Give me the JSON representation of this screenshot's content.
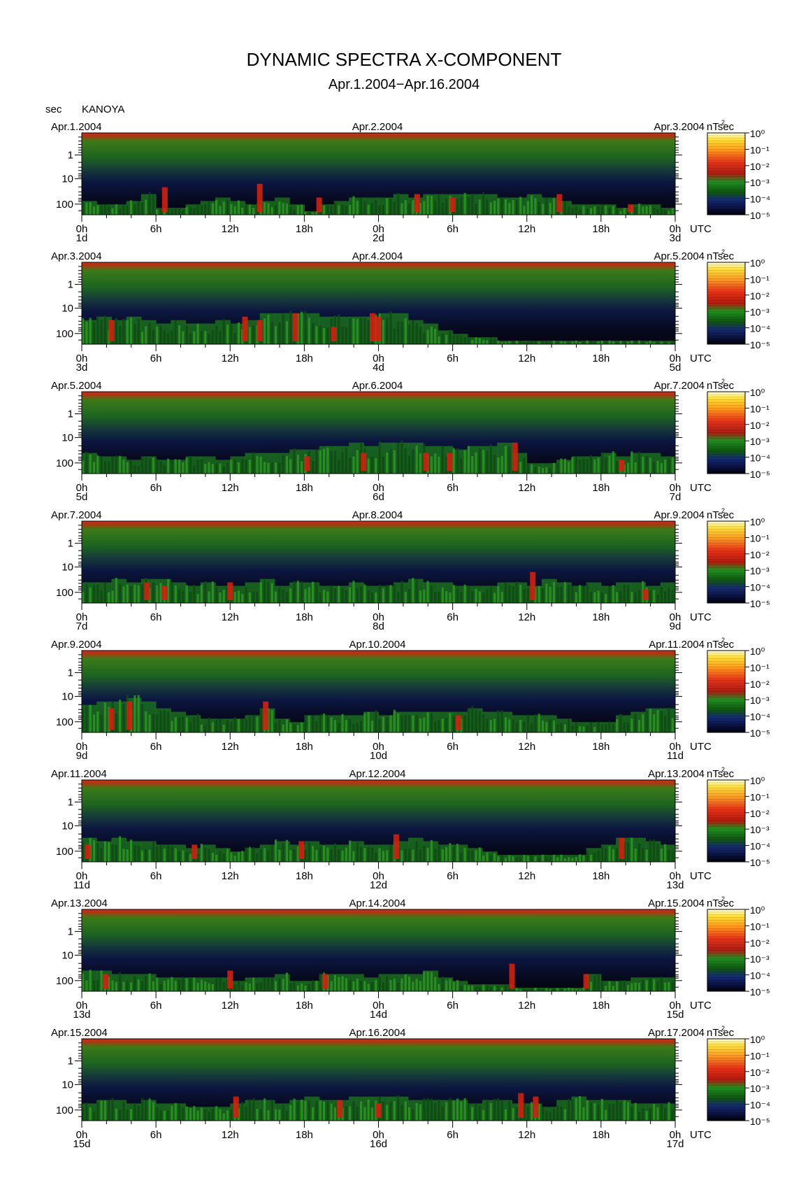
{
  "title": "DYNAMIC SPECTRA X-COMPONENT",
  "subtitle": "Apr.1.2004−Apr.16.2004",
  "station": "KANOYA",
  "y_unit": "sec",
  "colorbar_unit": "nT²sec",
  "time_unit": "UTC",
  "colors": {
    "background": "#050510",
    "noise_floor": "#0f1e50",
    "green": "#1e7a1e",
    "red": "#d02010",
    "top_band": "#b82a10"
  },
  "chart_data": [
    {
      "type": "heatmap",
      "date_left": "Apr.1.2004",
      "date_mid": "Apr.2.2004",
      "date_right": "Apr.3.2004",
      "x_ticks": [
        "0h",
        "6h",
        "12h",
        "18h",
        "0h",
        "6h",
        "12h",
        "18h",
        "0h"
      ],
      "day_labels": [
        "1d",
        "2d",
        "3d"
      ],
      "y_ticks": [
        "1",
        "10",
        "100"
      ],
      "y_scale": "log",
      "colorbar_ticks": [
        "10⁰",
        "10⁻¹",
        "10⁻²",
        "10⁻³",
        "10⁻⁴",
        "10⁻⁵"
      ],
      "activity": [
        0.4,
        0.3,
        0.3,
        0.4,
        0.6,
        0.2,
        0.2,
        0.3,
        0.4,
        0.5,
        0.4,
        0.3,
        0.4,
        0.5,
        0.3,
        0.1,
        0.3,
        0.4,
        0.5,
        0.5,
        0.5,
        0.6,
        0.5,
        0.6,
        0.6,
        0.6,
        0.6,
        0.6,
        0.5,
        0.5,
        0.6,
        0.5,
        0.4,
        0.3,
        0.3,
        0.3,
        0.2,
        0.3,
        0.3,
        0.2
      ],
      "bursts": [
        [
          0.28,
          0.8
        ],
        [
          0.6,
          0.9
        ],
        [
          0.8,
          0.5
        ],
        [
          1.13,
          0.6
        ],
        [
          1.25,
          0.5
        ],
        [
          1.61,
          0.6
        ],
        [
          1.85,
          0.3
        ]
      ]
    },
    {
      "type": "heatmap",
      "date_left": "Apr.3.2004",
      "date_mid": "Apr.4.2004",
      "date_right": "Apr.5.2004",
      "x_ticks": [
        "0h",
        "6h",
        "12h",
        "18h",
        "0h",
        "6h",
        "12h",
        "18h",
        "0h"
      ],
      "day_labels": [
        "3d",
        "4d",
        "5d"
      ],
      "y_ticks": [
        "1",
        "10",
        "100"
      ],
      "y_scale": "log",
      "colorbar_ticks": [
        "10⁰",
        "10⁻¹",
        "10⁻²",
        "10⁻³",
        "10⁻⁴",
        "10⁻⁵"
      ],
      "activity": [
        0.7,
        0.8,
        0.7,
        0.8,
        0.7,
        0.6,
        0.7,
        0.6,
        0.6,
        0.7,
        0.6,
        0.7,
        0.9,
        0.9,
        0.9,
        0.9,
        0.8,
        0.8,
        0.8,
        0.8,
        0.9,
        0.9,
        0.7,
        0.6,
        0.4,
        0.3,
        0.2,
        0.2,
        0.1,
        0.1,
        0.1,
        0.1,
        0.1,
        0.1,
        0.1,
        0.1,
        0.1,
        0.1,
        0.1,
        0.1
      ],
      "bursts": [
        [
          0.1,
          0.7
        ],
        [
          0.55,
          0.8
        ],
        [
          0.6,
          0.7
        ],
        [
          0.72,
          0.9
        ],
        [
          0.85,
          0.5
        ],
        [
          0.98,
          0.9
        ],
        [
          1.0,
          0.8
        ]
      ]
    },
    {
      "type": "heatmap",
      "date_left": "Apr.5.2004",
      "date_mid": "Apr.6.2004",
      "date_right": "Apr.7.2004",
      "x_ticks": [
        "0h",
        "6h",
        "12h",
        "18h",
        "0h",
        "6h",
        "12h",
        "18h",
        "0h"
      ],
      "day_labels": [
        "5d",
        "6d",
        "7d"
      ],
      "y_ticks": [
        "1",
        "10",
        "100"
      ],
      "y_scale": "log",
      "colorbar_ticks": [
        "10⁰",
        "10⁻¹",
        "10⁻²",
        "10⁻³",
        "10⁻⁴",
        "10⁻⁵"
      ],
      "activity": [
        0.6,
        0.5,
        0.5,
        0.4,
        0.5,
        0.4,
        0.4,
        0.5,
        0.5,
        0.4,
        0.5,
        0.6,
        0.6,
        0.6,
        0.7,
        0.7,
        0.8,
        0.8,
        0.9,
        0.8,
        0.9,
        0.9,
        0.9,
        0.8,
        0.8,
        0.7,
        0.8,
        0.8,
        0.9,
        0.6,
        0.3,
        0.3,
        0.4,
        0.5,
        0.5,
        0.6,
        0.5,
        0.6,
        0.6,
        0.5
      ],
      "bursts": [
        [
          0.76,
          0.5
        ],
        [
          0.95,
          0.6
        ],
        [
          1.16,
          0.6
        ],
        [
          1.24,
          0.6
        ],
        [
          1.46,
          0.9
        ],
        [
          1.82,
          0.4
        ]
      ]
    },
    {
      "type": "heatmap",
      "date_left": "Apr.7.2004",
      "date_mid": "Apr.8.2004",
      "date_right": "Apr.9.2004",
      "x_ticks": [
        "0h",
        "6h",
        "12h",
        "18h",
        "0h",
        "6h",
        "12h",
        "18h",
        "0h"
      ],
      "day_labels": [
        "7d",
        "8d",
        "9d"
      ],
      "y_ticks": [
        "1",
        "10",
        "100"
      ],
      "y_scale": "log",
      "colorbar_ticks": [
        "10⁰",
        "10⁻¹",
        "10⁻²",
        "10⁻³",
        "10⁻⁴",
        "10⁻⁵"
      ],
      "activity": [
        0.6,
        0.6,
        0.7,
        0.6,
        0.7,
        0.7,
        0.6,
        0.5,
        0.6,
        0.5,
        0.5,
        0.6,
        0.7,
        0.5,
        0.6,
        0.6,
        0.5,
        0.5,
        0.6,
        0.5,
        0.5,
        0.6,
        0.7,
        0.6,
        0.6,
        0.5,
        0.5,
        0.5,
        0.6,
        0.6,
        0.5,
        0.7,
        0.6,
        0.5,
        0.6,
        0.5,
        0.6,
        0.6,
        0.5,
        0.6
      ],
      "bursts": [
        [
          0.22,
          0.6
        ],
        [
          0.28,
          0.5
        ],
        [
          0.5,
          0.6
        ],
        [
          1.52,
          0.9
        ],
        [
          1.9,
          0.4
        ]
      ]
    },
    {
      "type": "heatmap",
      "date_left": "Apr.9.2004",
      "date_mid": "Apr.10.2004",
      "date_right": "Apr.11.2004",
      "x_ticks": [
        "0h",
        "6h",
        "12h",
        "18h",
        "0h",
        "6h",
        "12h",
        "18h",
        "0h"
      ],
      "day_labels": [
        "9d",
        "10d",
        "11d"
      ],
      "y_ticks": [
        "1",
        "10",
        "100"
      ],
      "y_scale": "log",
      "colorbar_ticks": [
        "10⁰",
        "10⁻¹",
        "10⁻²",
        "10⁻³",
        "10⁻⁴",
        "10⁻⁵"
      ],
      "activity": [
        0.8,
        0.9,
        0.9,
        1.0,
        0.9,
        0.7,
        0.6,
        0.5,
        0.4,
        0.4,
        0.4,
        0.5,
        0.7,
        0.4,
        0.3,
        0.5,
        0.5,
        0.5,
        0.5,
        0.6,
        0.5,
        0.6,
        0.6,
        0.6,
        0.6,
        0.6,
        0.7,
        0.6,
        0.6,
        0.5,
        0.5,
        0.5,
        0.4,
        0.3,
        0.3,
        0.3,
        0.5,
        0.6,
        0.7,
        0.7
      ],
      "bursts": [
        [
          0.1,
          0.7
        ],
        [
          0.16,
          0.9
        ],
        [
          0.62,
          0.9
        ],
        [
          1.27,
          0.5
        ]
      ]
    },
    {
      "type": "heatmap",
      "date_left": "Apr.11.2004",
      "date_mid": "Apr.12.2004",
      "date_right": "Apr.13.2004",
      "x_ticks": [
        "0h",
        "6h",
        "12h",
        "18h",
        "0h",
        "6h",
        "12h",
        "18h",
        "0h"
      ],
      "day_labels": [
        "11d",
        "12d",
        "13d"
      ],
      "y_ticks": [
        "1",
        "10",
        "100"
      ],
      "y_scale": "log",
      "colorbar_ticks": [
        "10⁰",
        "10⁻¹",
        "10⁻²",
        "10⁻³",
        "10⁻⁴",
        "10⁻⁵"
      ],
      "activity": [
        0.7,
        0.6,
        0.7,
        0.6,
        0.6,
        0.5,
        0.5,
        0.4,
        0.5,
        0.4,
        0.3,
        0.4,
        0.5,
        0.6,
        0.5,
        0.6,
        0.5,
        0.5,
        0.6,
        0.5,
        0.5,
        0.6,
        0.7,
        0.6,
        0.5,
        0.5,
        0.4,
        0.3,
        0.2,
        0.2,
        0.2,
        0.2,
        0.2,
        0.2,
        0.4,
        0.5,
        0.7,
        0.7,
        0.6,
        0.5
      ],
      "bursts": [
        [
          0.02,
          0.5
        ],
        [
          0.38,
          0.5
        ],
        [
          0.74,
          0.6
        ],
        [
          1.06,
          0.8
        ],
        [
          1.82,
          0.7
        ]
      ]
    },
    {
      "type": "heatmap",
      "date_left": "Apr.13.2004",
      "date_mid": "Apr.14.2004",
      "date_right": "Apr.15.2004",
      "x_ticks": [
        "0h",
        "6h",
        "12h",
        "18h",
        "0h",
        "6h",
        "12h",
        "18h",
        "0h"
      ],
      "day_labels": [
        "13d",
        "14d",
        "15d"
      ],
      "y_ticks": [
        "1",
        "10",
        "100"
      ],
      "y_scale": "log",
      "colorbar_ticks": [
        "10⁰",
        "10⁻¹",
        "10⁻²",
        "10⁻³",
        "10⁻⁴",
        "10⁻⁵"
      ],
      "activity": [
        0.6,
        0.6,
        0.5,
        0.5,
        0.5,
        0.4,
        0.4,
        0.4,
        0.4,
        0.4,
        0.3,
        0.4,
        0.4,
        0.5,
        0.3,
        0.3,
        0.5,
        0.5,
        0.5,
        0.4,
        0.5,
        0.5,
        0.5,
        0.6,
        0.4,
        0.3,
        0.2,
        0.2,
        0.2,
        0.1,
        0.1,
        0.1,
        0.1,
        0.1,
        0.5,
        0.3,
        0.3,
        0.4,
        0.4,
        0.4
      ],
      "bursts": [
        [
          0.08,
          0.5
        ],
        [
          0.5,
          0.6
        ],
        [
          0.82,
          0.5
        ],
        [
          1.45,
          0.8
        ],
        [
          1.7,
          0.5
        ]
      ]
    },
    {
      "type": "heatmap",
      "date_left": "Apr.15.2004",
      "date_mid": "Apr.16.2004",
      "date_right": "Apr.17.2004",
      "x_ticks": [
        "0h",
        "6h",
        "12h",
        "18h",
        "0h",
        "6h",
        "12h",
        "18h",
        "0h"
      ],
      "day_labels": [
        "15d",
        "16d",
        "17d"
      ],
      "y_ticks": [
        "1",
        "10",
        "100"
      ],
      "y_scale": "log",
      "colorbar_ticks": [
        "10⁰",
        "10⁻¹",
        "10⁻²",
        "10⁻³",
        "10⁻⁴",
        "10⁻⁵"
      ],
      "activity": [
        0.5,
        0.6,
        0.6,
        0.5,
        0.6,
        0.5,
        0.5,
        0.4,
        0.4,
        0.4,
        0.5,
        0.6,
        0.6,
        0.5,
        0.6,
        0.7,
        0.6,
        0.6,
        0.7,
        0.7,
        0.7,
        0.7,
        0.6,
        0.6,
        0.6,
        0.6,
        0.5,
        0.6,
        0.6,
        0.5,
        0.5,
        0.4,
        0.6,
        0.7,
        0.6,
        0.6,
        0.6,
        0.5,
        0.5,
        0.5
      ],
      "bursts": [
        [
          0.52,
          0.7
        ],
        [
          0.87,
          0.6
        ],
        [
          1.0,
          0.5
        ],
        [
          1.48,
          0.8
        ],
        [
          1.53,
          0.7
        ]
      ]
    }
  ]
}
